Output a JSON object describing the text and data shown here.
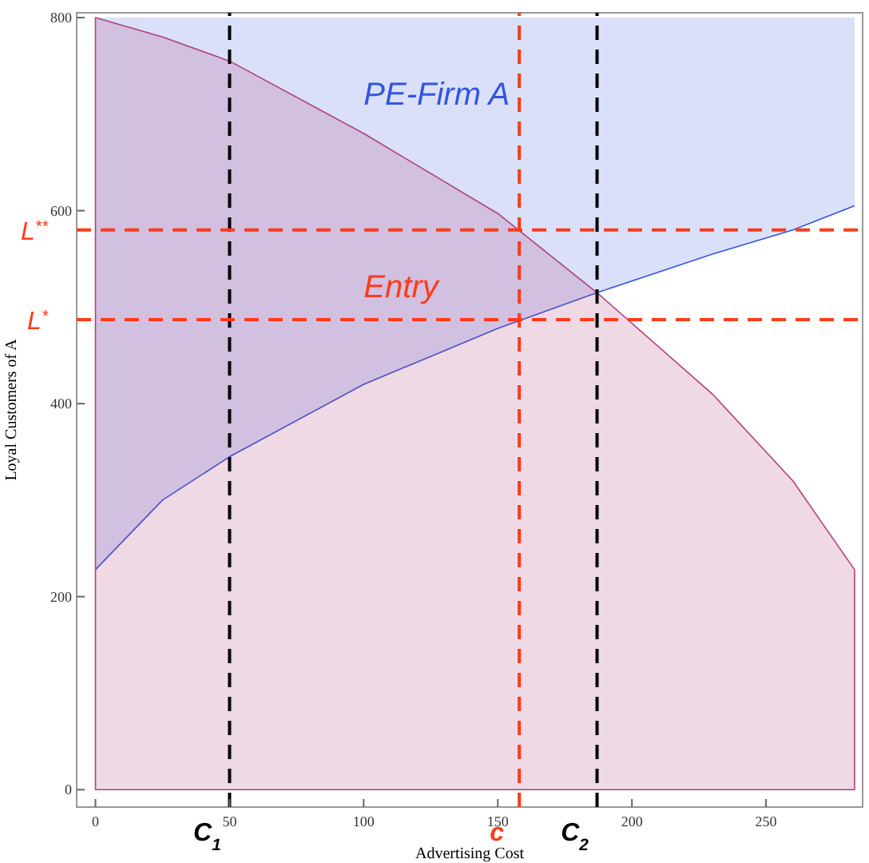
{
  "chart_data": {
    "type": "area",
    "xlabel": "Advertising Cost",
    "ylabel": "Loyal Customers of A",
    "x": [
      0,
      25,
      50,
      100,
      150,
      187,
      230,
      260,
      283
    ],
    "xlim": [
      -7,
      286
    ],
    "ylim": [
      -18,
      805
    ],
    "xticks": [
      0,
      50,
      100,
      150,
      200,
      250
    ],
    "yticks": [
      0,
      200,
      400,
      600,
      800
    ],
    "series": [
      {
        "name": "PE-Firm A",
        "type": "line",
        "color": "#3355dd",
        "values": [
          228,
          300,
          345,
          420,
          478,
          515,
          555,
          580,
          605
        ],
        "lower": [
          228,
          300,
          345,
          420,
          478,
          515,
          555,
          580,
          605
        ],
        "upper": [
          800,
          800,
          800,
          800,
          800,
          800,
          800,
          800,
          800
        ]
      },
      {
        "name": "Entry",
        "color": "#b0407a",
        "values": [
          800,
          780,
          755,
          680,
          597,
          515,
          410,
          320,
          228
        ]
      }
    ],
    "ref_lines": [
      {
        "axis": "x",
        "value": 50,
        "label": "C$_{1}$",
        "color": "#000000",
        "line_style": "dashed"
      },
      {
        "axis": "x",
        "value": 158,
        "label": "c",
        "color": "#ff3a1a",
        "line_style": "dashed"
      },
      {
        "axis": "x",
        "value": 187,
        "label": "C$_{2}$",
        "color": "#000000",
        "line_style": "dashed"
      },
      {
        "axis": "y",
        "value": 580,
        "label": "L$^{**}$",
        "color": "#ff3a1a",
        "line_style": "dashed"
      },
      {
        "axis": "y",
        "value": 487,
        "label": "L$^{*}$",
        "color": "#ff3a1a",
        "line_style": "dashed"
      }
    ]
  }
}
